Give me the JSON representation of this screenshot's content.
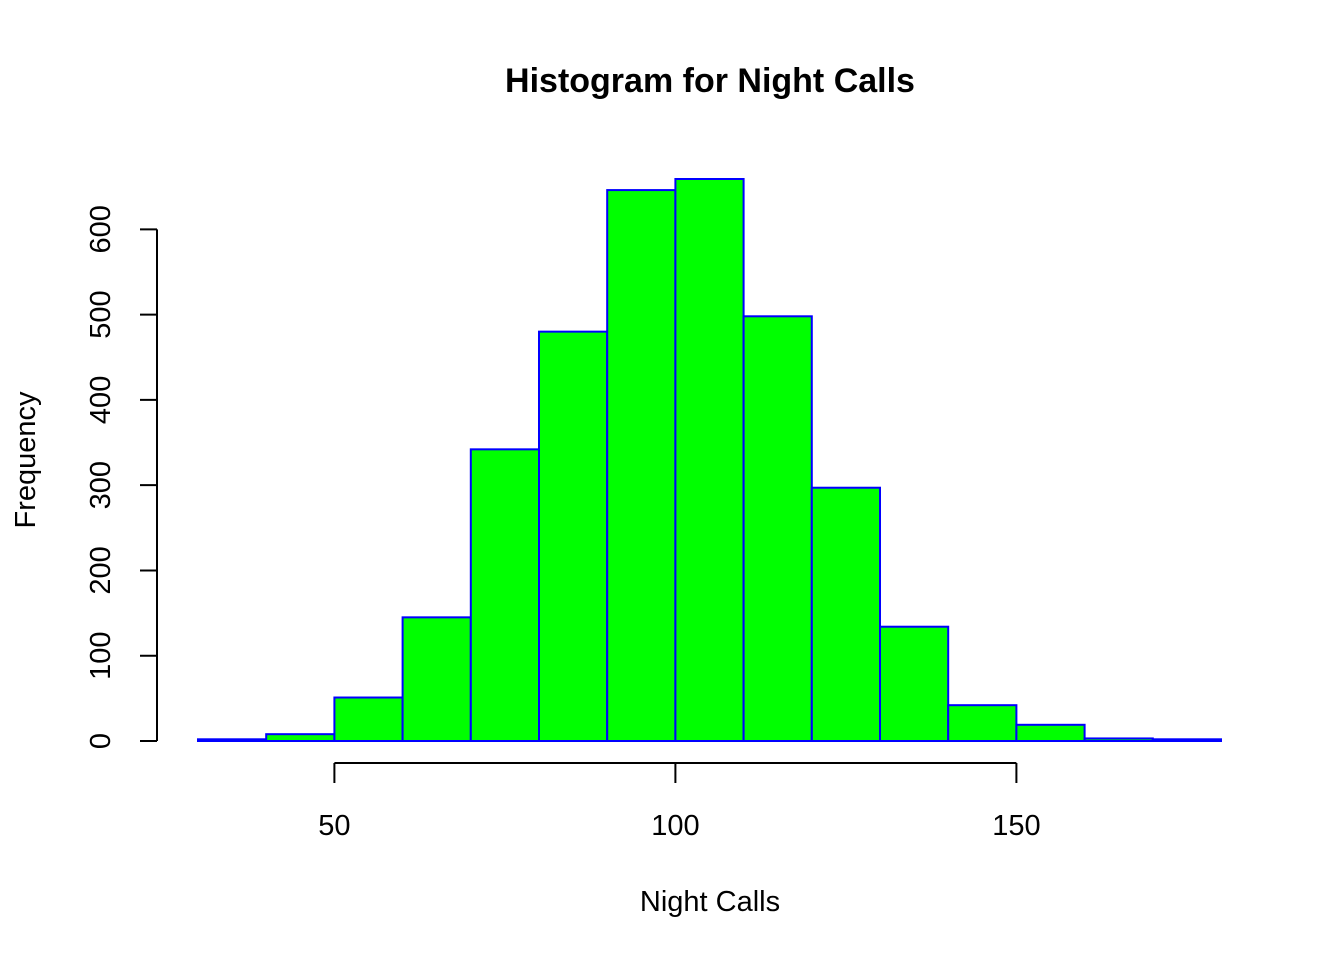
{
  "chart_data": {
    "type": "bar",
    "title": "Histogram for Night Calls",
    "xlabel": "Night Calls",
    "ylabel": "Frequency",
    "bin_edges": [
      30,
      40,
      50,
      60,
      70,
      80,
      90,
      100,
      110,
      120,
      130,
      140,
      150,
      160,
      170,
      180
    ],
    "values": [
      2,
      8,
      51,
      145,
      342,
      480,
      646,
      659,
      498,
      297,
      134,
      42,
      19,
      3,
      2
    ],
    "xlim": [
      30,
      180
    ],
    "ylim": [
      0,
      659
    ],
    "x_ticks": [
      50,
      100,
      150
    ],
    "y_ticks": [
      0,
      100,
      200,
      300,
      400,
      500,
      600
    ],
    "grid": false,
    "legend": "none",
    "bar_fill_color": "#00ff00",
    "bar_border_color": "#0000ff"
  }
}
